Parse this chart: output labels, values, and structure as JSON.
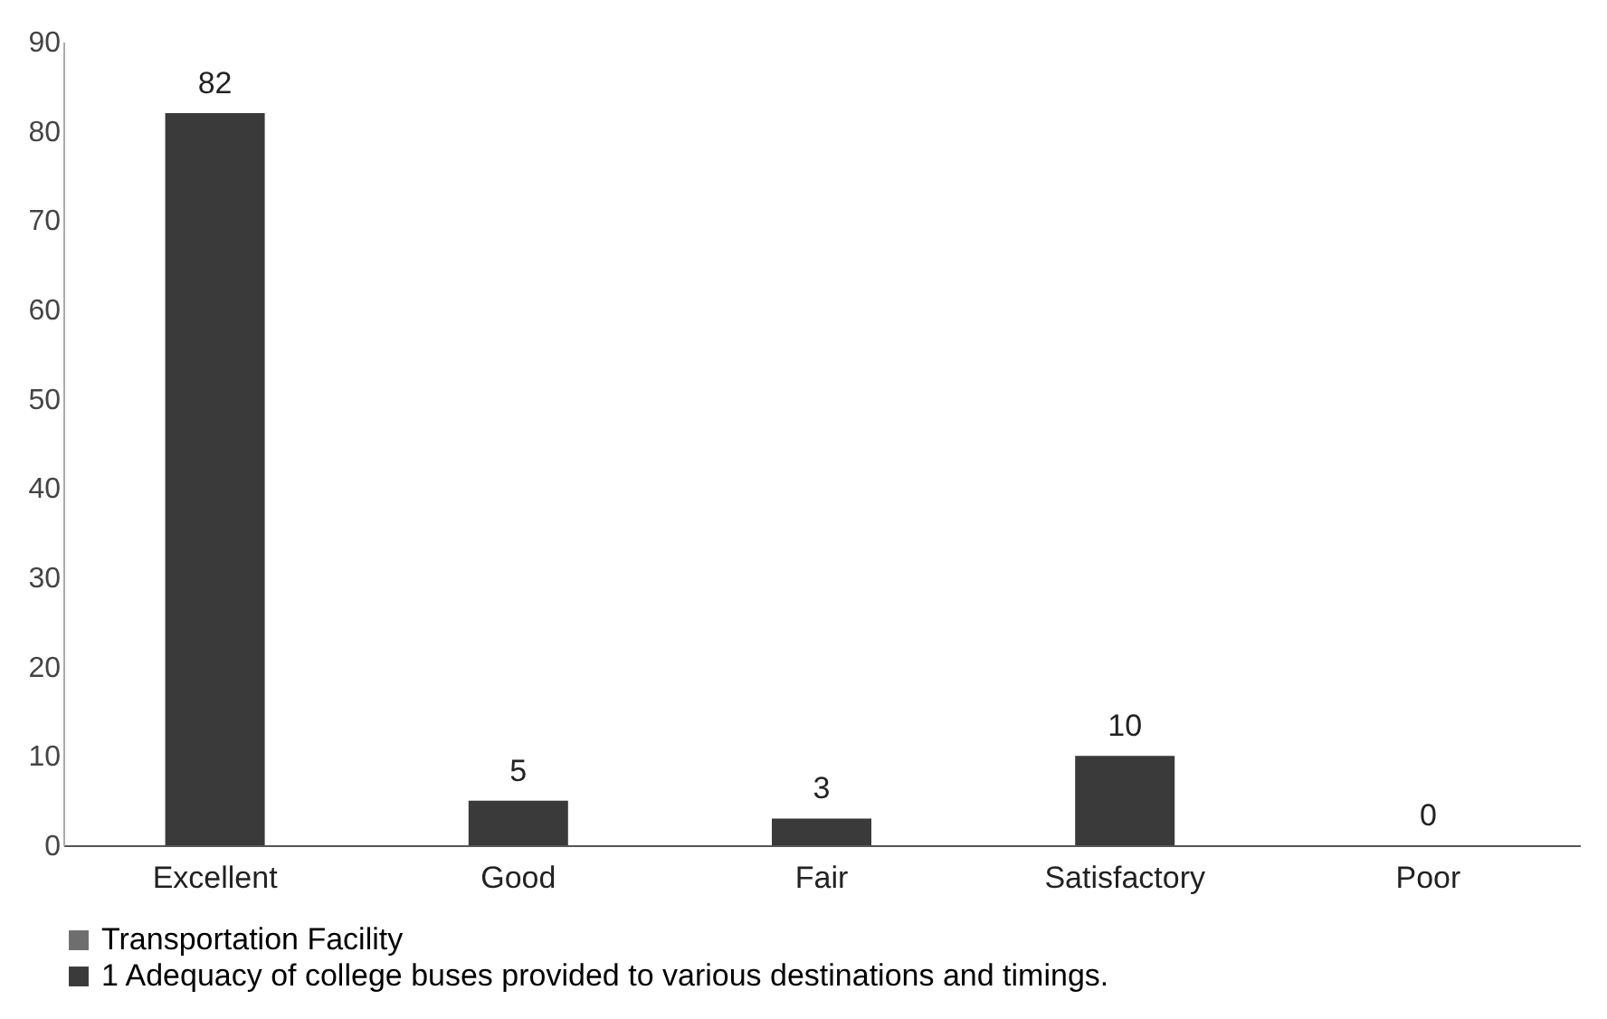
{
  "chart_data": {
    "type": "bar",
    "categories": [
      "Excellent",
      "Good",
      "Fair",
      "Satisfactory",
      "Poor"
    ],
    "series": [
      {
        "name": "Transportation Facility",
        "color": "#6e6e6e",
        "values": [
          null,
          null,
          null,
          null,
          null
        ]
      },
      {
        "name": "1 Adequacy of college buses provided to various destinations and timings.",
        "color": "#3a3a3a",
        "values": [
          82,
          5,
          3,
          10,
          0
        ]
      }
    ],
    "ylim": [
      0,
      90
    ],
    "yticks": [
      0,
      10,
      20,
      30,
      40,
      50,
      60,
      70,
      80,
      90
    ],
    "grid": false,
    "legend": "bottom",
    "data_labels": true
  }
}
